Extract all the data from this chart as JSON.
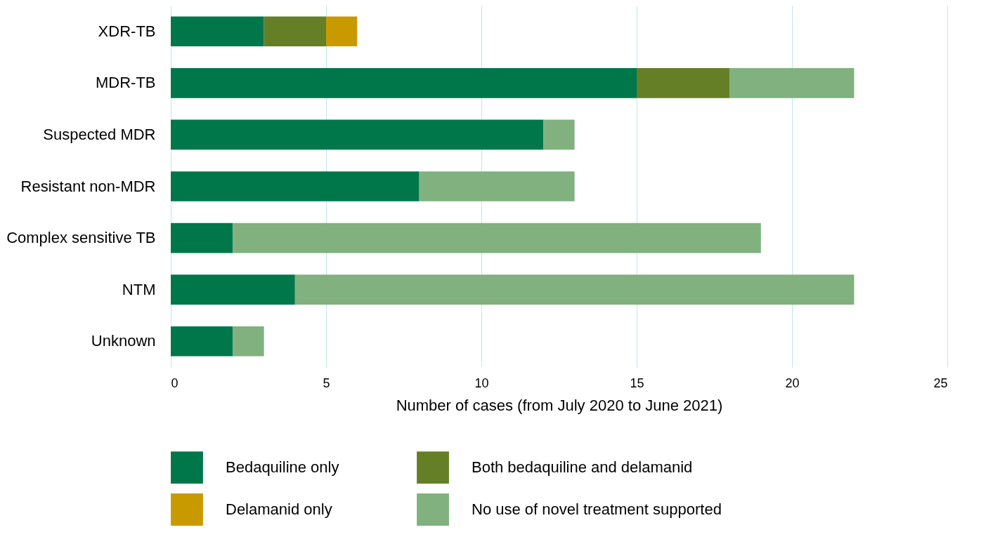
{
  "chart_data": {
    "type": "bar",
    "orientation": "horizontal",
    "stacked": true,
    "xlabel": "Number of cases (from July 2020 to June 2021)",
    "categories": [
      "XDR-TB",
      "MDR-TB",
      "Suspected MDR",
      "Resistant non-MDR",
      "Complex sensitive TB",
      "NTM",
      "Unknown"
    ],
    "series": [
      {
        "name": "Bedaquiline only",
        "color": "#00774a",
        "values": [
          3,
          15,
          12,
          8,
          2,
          4,
          2
        ]
      },
      {
        "name": "Both bedaquiline and delamanid",
        "color": "#647f25",
        "values": [
          2,
          3,
          0,
          0,
          0,
          0,
          0
        ]
      },
      {
        "name": "Delamanid only",
        "color": "#c99a00",
        "values": [
          1,
          0,
          0,
          0,
          0,
          0,
          0
        ]
      },
      {
        "name": "No use of novel treatment supported",
        "color": "#80b17f",
        "values": [
          0,
          4,
          1,
          5,
          17,
          18,
          1
        ]
      }
    ],
    "xlim": [
      0,
      25
    ],
    "xticks": [
      0,
      5,
      10,
      15,
      20,
      25
    ],
    "grid": "x",
    "legend": "bottom"
  }
}
